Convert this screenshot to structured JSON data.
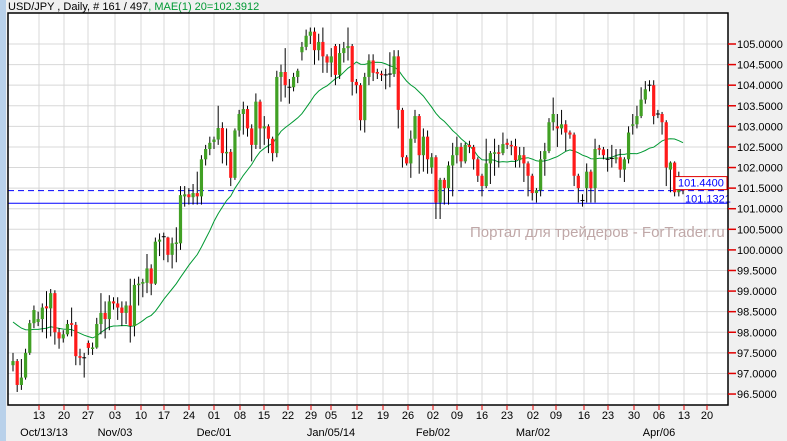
{
  "header": {
    "symbol_info": "USD/JPY , Daily, # 161 / 497",
    "indicator_info": ", MAE(1) 20=102.3912"
  },
  "watermark": "Портал для трейдеров - ForTrader.ru",
  "colors": {
    "bull": "#41a024",
    "bear": "#ff1a1a",
    "ma": "#009933",
    "level": "#0000ff",
    "price_box": "#e00000"
  },
  "chart_data": {
    "type": "candlestick",
    "symbol": "USD/JPY",
    "timeframe": "Daily",
    "indicator": {
      "name": "MAE(1) 20",
      "value": "102.3912",
      "period": 20
    },
    "ylim": [
      96.23,
      105.75
    ],
    "grid": true,
    "y_ticks": [
      "96.5000",
      "97.0000",
      "97.5000",
      "98.0000",
      "98.5000",
      "99.0000",
      "99.5000",
      "100.0000",
      "100.5000",
      "101.0000",
      "101.5000",
      "102.0000",
      "102.5000",
      "103.0000",
      "103.5000",
      "104.0000",
      "104.5000",
      "105.0000"
    ],
    "x_ticks": [
      "13",
      "20",
      "27",
      "03",
      "10",
      "17",
      "24",
      "01",
      "08",
      "15",
      "22",
      "29",
      "05",
      "12",
      "19",
      "26",
      "02",
      "09",
      "16",
      "23",
      "02",
      "09",
      "16",
      "23",
      "30",
      "06",
      "13",
      "20"
    ],
    "month_labels": [
      "Oct/13/13",
      "Nov/03",
      "Dec/01",
      "Jan/05/14",
      "Feb/02",
      "Mar/02",
      "Apr/06"
    ],
    "levels": {
      "current_price": {
        "value": 101.44,
        "label": "101.4400",
        "style": "dashed"
      },
      "line": {
        "value": 101.1321,
        "label": "101.1321",
        "style": "solid"
      }
    },
    "ohlc": [
      [
        97.2,
        97.5,
        97.05,
        97.3
      ],
      [
        97.3,
        97.35,
        96.55,
        96.72
      ],
      [
        96.72,
        97.35,
        96.6,
        96.9
      ],
      [
        96.9,
        97.6,
        96.85,
        97.5
      ],
      [
        97.5,
        98.3,
        97.45,
        98.22
      ],
      [
        98.22,
        98.65,
        98.1,
        98.54
      ],
      [
        98.25,
        98.5,
        98.15,
        98.32
      ],
      [
        98.32,
        98.7,
        98.0,
        98.6
      ],
      [
        98.63,
        99.0,
        97.85,
        98.58
      ],
      [
        98.58,
        99.05,
        97.9,
        98.95
      ],
      [
        98.95,
        99.02,
        97.7,
        98.0
      ],
      [
        98.0,
        98.1,
        97.6,
        97.85
      ],
      [
        97.85,
        98.05,
        97.75,
        97.95
      ],
      [
        97.95,
        98.3,
        97.9,
        98.2
      ],
      [
        98.22,
        98.6,
        97.9,
        98.18
      ],
      [
        98.18,
        98.25,
        97.2,
        97.42
      ],
      [
        97.42,
        97.6,
        97.2,
        97.38
      ],
      [
        97.38,
        97.5,
        96.9,
        97.38
      ],
      [
        97.74,
        97.8,
        97.45,
        97.62
      ],
      [
        97.6,
        97.75,
        97.45,
        97.63
      ],
      [
        97.63,
        98.35,
        97.6,
        98.2
      ],
      [
        98.2,
        98.95,
        97.95,
        98.47
      ],
      [
        98.47,
        98.75,
        97.85,
        98.32
      ],
      [
        98.32,
        98.9,
        98.05,
        98.75
      ],
      [
        98.75,
        98.85,
        98.55,
        98.7
      ],
      [
        98.7,
        98.85,
        98.3,
        98.6
      ],
      [
        98.6,
        98.75,
        98.15,
        98.47
      ],
      [
        98.47,
        98.75,
        98.2,
        98.65
      ],
      [
        98.65,
        99.3,
        97.75,
        98.15
      ],
      [
        98.15,
        99.3,
        97.9,
        99.15
      ],
      [
        99.15,
        99.35,
        98.65,
        99.18
      ],
      [
        99.18,
        99.3,
        98.85,
        99.22
      ],
      [
        99.2,
        99.9,
        98.95,
        99.55
      ],
      [
        99.55,
        99.65,
        98.9,
        99.18
      ],
      [
        99.18,
        100.3,
        99.15,
        100.2
      ],
      [
        100.2,
        100.4,
        99.85,
        100.25
      ],
      [
        100.3,
        100.42,
        99.75,
        100.32
      ],
      [
        100.3,
        100.32,
        99.7,
        99.88
      ],
      [
        99.88,
        100.3,
        99.55,
        100.16
      ],
      [
        100.15,
        100.55,
        99.7,
        100.18
      ],
      [
        100.16,
        101.55,
        100.0,
        101.33
      ],
      [
        101.3,
        101.55,
        101.05,
        101.35
      ],
      [
        101.35,
        101.5,
        101.1,
        101.28
      ],
      [
        101.28,
        101.6,
        101.1,
        101.38
      ],
      [
        101.38,
        101.9,
        101.1,
        101.3
      ],
      [
        101.3,
        102.3,
        101.1,
        102.2
      ],
      [
        102.2,
        102.55,
        102.05,
        102.45
      ],
      [
        102.45,
        102.75,
        102.3,
        102.6
      ],
      [
        102.62,
        102.75,
        102.45,
        102.68
      ],
      [
        102.68,
        103.5,
        102.55,
        102.96
      ],
      [
        102.96,
        103.1,
        102.1,
        102.35
      ],
      [
        102.35,
        102.95,
        102.05,
        102.38
      ],
      [
        102.38,
        102.45,
        101.55,
        101.75
      ],
      [
        101.75,
        102.95,
        101.7,
        102.9
      ],
      [
        102.9,
        103.4,
        102.75,
        103.3
      ],
      [
        103.3,
        103.6,
        102.8,
        103.42
      ],
      [
        103.42,
        103.5,
        102.75,
        102.95
      ],
      [
        102.95,
        103.05,
        102.15,
        102.55
      ],
      [
        102.55,
        103.8,
        102.45,
        103.6
      ],
      [
        103.6,
        103.65,
        102.45,
        102.95
      ],
      [
        102.95,
        103.25,
        102.55,
        103.0
      ],
      [
        103.0,
        103.05,
        102.35,
        102.7
      ],
      [
        102.7,
        102.75,
        102.15,
        102.35
      ],
      [
        102.35,
        104.35,
        102.25,
        104.2
      ],
      [
        104.2,
        104.5,
        103.6,
        104.32
      ],
      [
        104.32,
        104.9,
        103.7,
        104.0
      ],
      [
        103.95,
        104.15,
        103.55,
        103.95
      ],
      [
        103.95,
        104.3,
        103.85,
        104.2
      ],
      [
        104.2,
        104.4,
        104.05,
        104.35
      ],
      [
        104.8,
        105.05,
        104.6,
        104.93
      ],
      [
        104.93,
        105.35,
        104.85,
        105.2
      ],
      [
        105.2,
        105.4,
        105.0,
        105.3
      ],
      [
        105.3,
        105.4,
        104.5,
        104.85
      ],
      [
        104.85,
        105.25,
        104.6,
        105.05
      ],
      [
        105.05,
        105.4,
        104.3,
        104.7
      ],
      [
        104.7,
        104.75,
        104.3,
        104.55
      ],
      [
        104.55,
        104.9,
        104.2,
        104.7
      ],
      [
        104.95,
        105.0,
        104.0,
        104.25
      ],
      [
        104.25,
        105.0,
        104.15,
        104.78
      ],
      [
        104.78,
        105.05,
        104.55,
        104.9
      ],
      [
        104.9,
        105.4,
        104.6,
        104.95
      ],
      [
        104.95,
        105.0,
        103.75,
        104.08
      ],
      [
        104.08,
        104.15,
        103.8,
        104.0
      ],
      [
        104.0,
        104.05,
        102.9,
        103.15
      ],
      [
        103.15,
        104.3,
        102.85,
        104.2
      ],
      [
        104.2,
        104.75,
        104.0,
        104.6
      ],
      [
        104.6,
        104.75,
        104.1,
        104.3
      ],
      [
        104.32,
        104.4,
        104.15,
        104.28
      ],
      [
        104.28,
        104.35,
        104.1,
        104.25
      ],
      [
        104.25,
        104.4,
        103.9,
        104.25
      ],
      [
        104.25,
        104.8,
        103.95,
        104.27
      ],
      [
        104.27,
        104.85,
        104.2,
        104.7
      ],
      [
        104.7,
        104.85,
        102.95,
        103.4
      ],
      [
        103.4,
        103.45,
        102.0,
        102.25
      ],
      [
        102.25,
        102.3,
        102.05,
        102.1
      ],
      [
        102.1,
        102.9,
        101.75,
        102.7
      ],
      [
        102.7,
        103.4,
        102.6,
        103.25
      ],
      [
        103.25,
        103.3,
        101.85,
        102.3
      ],
      [
        102.3,
        102.95,
        101.9,
        102.75
      ],
      [
        102.75,
        102.9,
        101.85,
        102.2
      ],
      [
        102.0,
        102.35,
        101.85,
        102.25
      ],
      [
        102.25,
        102.3,
        100.75,
        101.15
      ],
      [
        101.15,
        101.75,
        100.75,
        101.7
      ],
      [
        101.7,
        101.75,
        101.1,
        101.5
      ],
      [
        101.5,
        102.15,
        101.1,
        102.05
      ],
      [
        102.05,
        102.6,
        101.3,
        102.3
      ],
      [
        102.3,
        102.75,
        102.1,
        102.5
      ],
      [
        102.5,
        102.6,
        102.0,
        102.15
      ],
      [
        102.15,
        102.6,
        102.1,
        102.55
      ],
      [
        102.55,
        102.65,
        102.35,
        102.5
      ],
      [
        102.5,
        102.55,
        101.95,
        102.2
      ],
      [
        102.2,
        102.25,
        101.65,
        101.8
      ],
      [
        101.8,
        101.85,
        101.3,
        101.55
      ],
      [
        101.55,
        102.7,
        101.5,
        102.1
      ],
      [
        102.1,
        102.4,
        101.6,
        102.35
      ],
      [
        102.35,
        102.7,
        101.8,
        102.37
      ],
      [
        102.37,
        102.55,
        102.0,
        102.35
      ],
      [
        102.35,
        102.85,
        102.3,
        102.57
      ],
      [
        102.6,
        102.7,
        102.45,
        102.55
      ],
      [
        102.55,
        102.65,
        102.3,
        102.52
      ],
      [
        102.52,
        102.7,
        102.0,
        102.18
      ],
      [
        102.18,
        102.5,
        102.0,
        102.3
      ],
      [
        102.3,
        102.5,
        101.65,
        102.1
      ],
      [
        102.1,
        102.15,
        101.3,
        101.8
      ],
      [
        101.8,
        101.85,
        101.2,
        101.38
      ],
      [
        101.38,
        101.5,
        101.15,
        101.45
      ],
      [
        101.45,
        102.4,
        101.3,
        102.2
      ],
      [
        102.2,
        102.6,
        101.8,
        102.4
      ],
      [
        102.4,
        103.2,
        102.35,
        103.1
      ],
      [
        103.1,
        103.7,
        102.9,
        103.3
      ],
      [
        103.0,
        103.3,
        102.5,
        102.95
      ],
      [
        102.95,
        103.4,
        102.8,
        103.05
      ],
      [
        103.05,
        103.15,
        102.4,
        102.85
      ],
      [
        102.85,
        102.9,
        102.7,
        102.8
      ],
      [
        102.8,
        102.85,
        101.55,
        101.8
      ],
      [
        101.8,
        101.85,
        101.15,
        101.5
      ],
      [
        101.2,
        101.35,
        101.05,
        101.2
      ],
      [
        101.5,
        102.1,
        101.15,
        101.9
      ],
      [
        101.9,
        101.95,
        101.15,
        101.5
      ],
      [
        101.5,
        102.7,
        101.15,
        102.45
      ],
      [
        102.47,
        102.55,
        102.3,
        102.44
      ],
      [
        102.44,
        102.5,
        102.2,
        102.3
      ],
      [
        102.2,
        102.45,
        101.9,
        102.2
      ],
      [
        102.2,
        102.55,
        102.0,
        102.22
      ],
      [
        102.2,
        102.45,
        102.1,
        102.25
      ],
      [
        102.25,
        102.45,
        101.75,
        101.95
      ],
      [
        101.95,
        102.25,
        101.65,
        102.2
      ],
      [
        102.2,
        103.0,
        102.1,
        102.85
      ],
      [
        103.02,
        103.3,
        102.8,
        103.05
      ],
      [
        103.05,
        103.5,
        102.95,
        103.25
      ],
      [
        103.25,
        103.95,
        103.2,
        103.65
      ],
      [
        103.65,
        104.1,
        103.55,
        103.9
      ],
      [
        104.0,
        104.12,
        103.85,
        104.0
      ],
      [
        104.0,
        104.12,
        103.05,
        103.25
      ],
      [
        103.3,
        103.4,
        103.2,
        103.3
      ],
      [
        103.3,
        103.35,
        102.8,
        103.1
      ],
      [
        103.1,
        103.15,
        101.55,
        102.0
      ],
      [
        101.95,
        102.15,
        101.4,
        102.12
      ],
      [
        102.12,
        102.15,
        101.3,
        101.4
      ],
      [
        101.4,
        101.9,
        101.3,
        101.62
      ],
      [
        101.62,
        101.65,
        101.35,
        101.44
      ]
    ]
  }
}
